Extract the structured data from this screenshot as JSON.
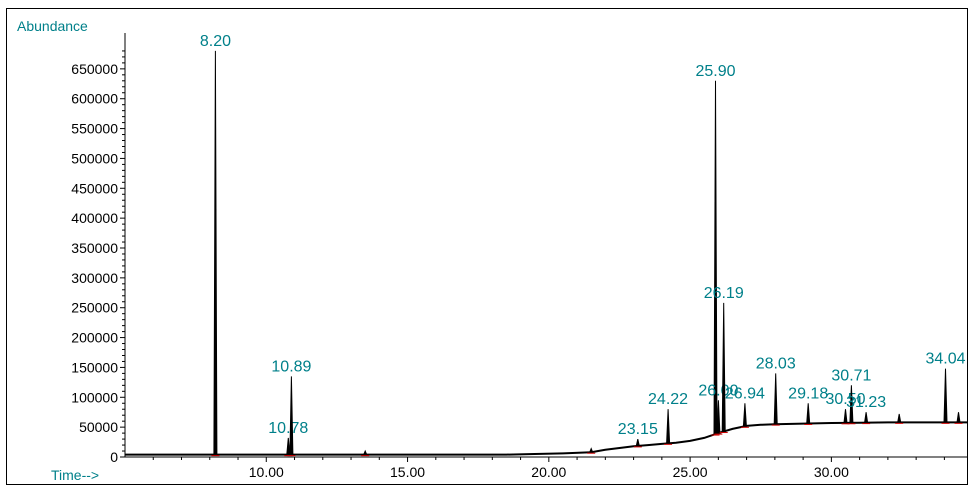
{
  "chart_data": {
    "type": "line",
    "ylabel": "Abundance",
    "xlabel": "Time-->",
    "xlim": [
      5.0,
      34.8
    ],
    "ylim": [
      0,
      700000
    ],
    "xticks": [
      {
        "value": 10,
        "label": "10.00"
      },
      {
        "value": 15,
        "label": "15.00"
      },
      {
        "value": 20,
        "label": "20.00"
      },
      {
        "value": 25,
        "label": "25.00"
      },
      {
        "value": 30,
        "label": "30.00"
      }
    ],
    "yticks": [
      {
        "value": 0,
        "label": "0"
      },
      {
        "value": 50000,
        "label": "50000"
      },
      {
        "value": 100000,
        "label": "100000"
      },
      {
        "value": 150000,
        "label": "150000"
      },
      {
        "value": 200000,
        "label": "200000"
      },
      {
        "value": 250000,
        "label": "250000"
      },
      {
        "value": 300000,
        "label": "300000"
      },
      {
        "value": 350000,
        "label": "350000"
      },
      {
        "value": 400000,
        "label": "400000"
      },
      {
        "value": 450000,
        "label": "450000"
      },
      {
        "value": 500000,
        "label": "500000"
      },
      {
        "value": 550000,
        "label": "550000"
      },
      {
        "value": 600000,
        "label": "600000"
      },
      {
        "value": 650000,
        "label": "650000"
      }
    ],
    "grid": false,
    "baseline": [
      [
        5.0,
        4000
      ],
      [
        10.0,
        4000
      ],
      [
        15.0,
        4000
      ],
      [
        18.5,
        4000
      ],
      [
        19.5,
        5000
      ],
      [
        20.5,
        6000
      ],
      [
        21.5,
        8000
      ],
      [
        22.0,
        12000
      ],
      [
        22.5,
        15000
      ],
      [
        23.0,
        18000
      ],
      [
        23.5,
        20000
      ],
      [
        24.0,
        22000
      ],
      [
        24.5,
        24000
      ],
      [
        25.0,
        27000
      ],
      [
        25.5,
        32000
      ],
      [
        26.0,
        40000
      ],
      [
        26.5,
        47000
      ],
      [
        27.0,
        52000
      ],
      [
        27.5,
        54000
      ],
      [
        28.0,
        55000
      ],
      [
        29.0,
        56000
      ],
      [
        30.0,
        57000
      ],
      [
        31.0,
        57500
      ],
      [
        32.0,
        58000
      ],
      [
        33.0,
        58000
      ],
      [
        34.0,
        58000
      ],
      [
        34.8,
        58000
      ]
    ],
    "peaks": [
      {
        "rt": 8.2,
        "height": 680000,
        "label": "8.20",
        "labeled": true
      },
      {
        "rt": 10.78,
        "height": 32000,
        "label": "10.78",
        "labeled": true
      },
      {
        "rt": 10.89,
        "height": 135000,
        "label": "10.89",
        "labeled": true
      },
      {
        "rt": 13.5,
        "height": 10000,
        "labeled": false
      },
      {
        "rt": 21.5,
        "height": 14000,
        "labeled": false
      },
      {
        "rt": 23.15,
        "height": 30000,
        "label": "23.15",
        "labeled": true
      },
      {
        "rt": 24.22,
        "height": 80000,
        "label": "24.22",
        "labeled": true
      },
      {
        "rt": 25.9,
        "height": 630000,
        "label": "25.90",
        "labeled": true
      },
      {
        "rt": 26.0,
        "height": 95000,
        "label": "26.00",
        "labeled": true
      },
      {
        "rt": 26.19,
        "height": 258000,
        "label": "26.19",
        "labeled": true
      },
      {
        "rt": 26.94,
        "height": 90000,
        "label": "26.94",
        "labeled": true
      },
      {
        "rt": 28.03,
        "height": 140000,
        "label": "28.03",
        "labeled": true
      },
      {
        "rt": 29.18,
        "height": 90000,
        "label": "29.18",
        "labeled": true
      },
      {
        "rt": 30.5,
        "height": 80000,
        "label": "30.50",
        "labeled": true
      },
      {
        "rt": 30.71,
        "height": 120000,
        "label": "30.71",
        "labeled": true
      },
      {
        "rt": 31.23,
        "height": 75000,
        "label": "31.23",
        "labeled": true
      },
      {
        "rt": 32.4,
        "height": 72000,
        "labeled": false
      },
      {
        "rt": 34.04,
        "height": 148000,
        "label": "34.04",
        "labeled": true
      },
      {
        "rt": 34.5,
        "height": 75000,
        "labeled": false
      }
    ],
    "colors": {
      "trace": "#000000",
      "label": "#00808a",
      "integration": "#cc0000"
    }
  }
}
